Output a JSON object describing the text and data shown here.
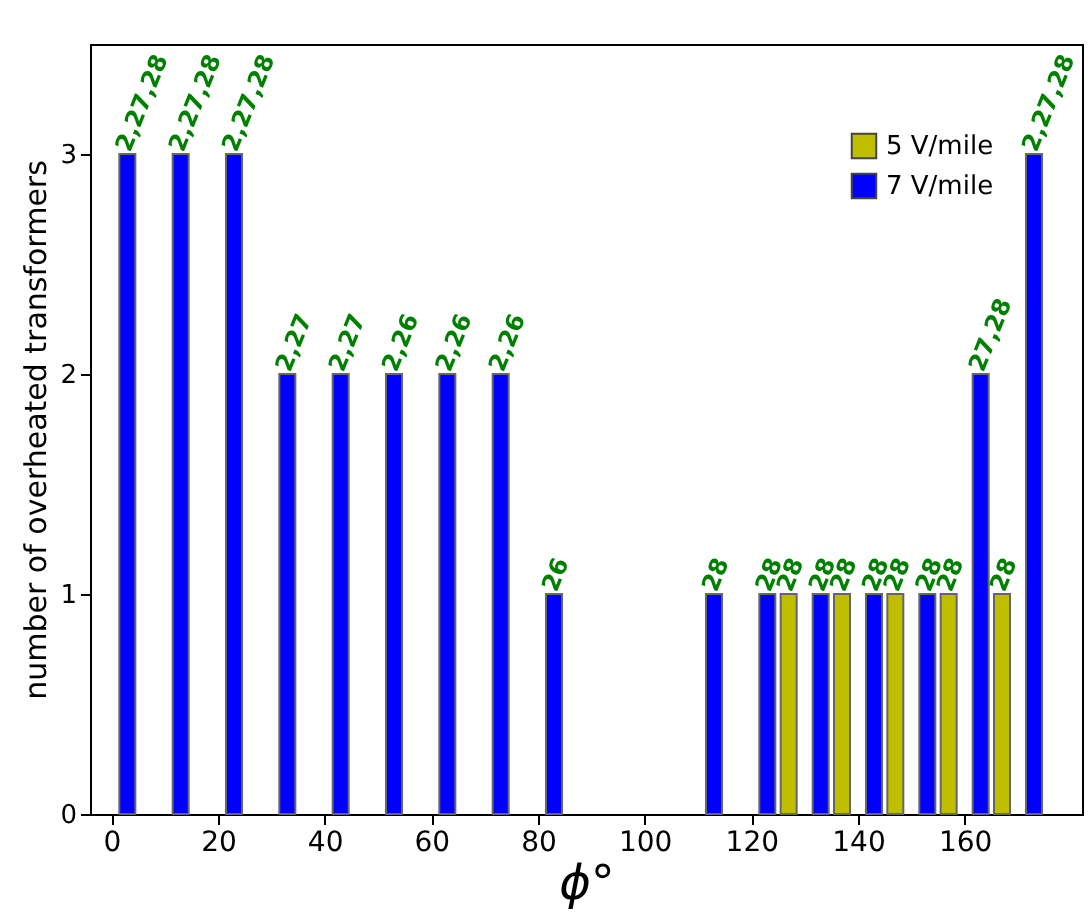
{
  "chart_data": {
    "type": "bar",
    "xlabel": "ϕ°",
    "ylabel": "number of overheated transformers",
    "xlim": [
      -4,
      182
    ],
    "xticks": [
      0,
      20,
      40,
      60,
      80,
      100,
      120,
      140,
      160
    ],
    "ylim": [
      0,
      3.5
    ],
    "yticks": [
      0,
      1,
      2,
      3
    ],
    "legend": "top right",
    "grid": false,
    "series": [
      {
        "name": "5 V/mile",
        "color": "#bfbf00",
        "x": [
          127,
          137,
          147,
          157,
          167
        ],
        "values": [
          1,
          1,
          1,
          1,
          1
        ]
      },
      {
        "name": "7 V/mile",
        "color": "#0000ff",
        "x": [
          3,
          13,
          23,
          33,
          43,
          53,
          63,
          73,
          83,
          113,
          123,
          133,
          143,
          153,
          163,
          173
        ],
        "values": [
          3,
          3,
          3,
          2,
          2,
          2,
          2,
          2,
          1,
          1,
          1,
          1,
          1,
          1,
          2,
          3
        ]
      }
    ],
    "annotations": [
      {
        "text": "2,27,28",
        "x": 3,
        "y": 3
      },
      {
        "text": "2,27,28",
        "x": 13,
        "y": 3
      },
      {
        "text": "2,27,28",
        "x": 23,
        "y": 3
      },
      {
        "text": "2,27",
        "x": 33,
        "y": 2
      },
      {
        "text": "2,27",
        "x": 43,
        "y": 2
      },
      {
        "text": "2,26",
        "x": 53,
        "y": 2
      },
      {
        "text": "2,26",
        "x": 63,
        "y": 2
      },
      {
        "text": "2,26",
        "x": 73,
        "y": 2
      },
      {
        "text": "26",
        "x": 83,
        "y": 1
      },
      {
        "text": "28",
        "x": 113,
        "y": 1
      },
      {
        "text": "28",
        "x": 123,
        "y": 1
      },
      {
        "text": "28",
        "x": 127,
        "y": 1
      },
      {
        "text": "28",
        "x": 133,
        "y": 1
      },
      {
        "text": "28",
        "x": 137,
        "y": 1
      },
      {
        "text": "28",
        "x": 143,
        "y": 1
      },
      {
        "text": "28",
        "x": 147,
        "y": 1
      },
      {
        "text": "28",
        "x": 153,
        "y": 1
      },
      {
        "text": "28",
        "x": 157,
        "y": 1
      },
      {
        "text": "27,28",
        "x": 163,
        "y": 2
      },
      {
        "text": "28",
        "x": 167,
        "y": 1
      },
      {
        "text": "2,27,28",
        "x": 173,
        "y": 3
      }
    ]
  }
}
